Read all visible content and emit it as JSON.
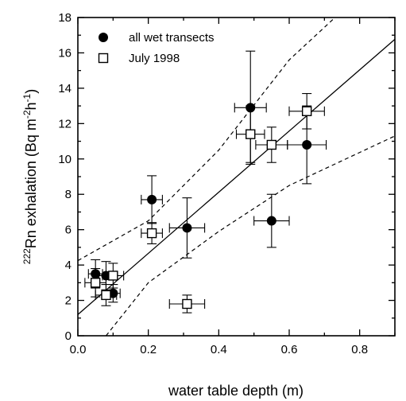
{
  "chart_data": {
    "type": "scatter",
    "xlabel": "water table depth (m)",
    "ylabel": {
      "pre_superscript": "222",
      "main": "Rn exhalation (Bq m",
      "sup1": "-2",
      "mid": "h",
      "sup2": "-1",
      "end": ")"
    },
    "xlim": [
      0.0,
      0.9
    ],
    "ylim": [
      0,
      18
    ],
    "x_ticks": [
      0.0,
      0.2,
      0.4,
      0.6,
      0.8
    ],
    "x_tick_labels": [
      "0.0",
      "0.2",
      "0.4",
      "0.6",
      "0.8"
    ],
    "y_ticks": [
      0,
      2,
      4,
      6,
      8,
      10,
      12,
      14,
      16,
      18
    ],
    "y_tick_labels": [
      "0",
      "2",
      "4",
      "6",
      "8",
      "10",
      "12",
      "14",
      "16",
      "18"
    ],
    "legend_position": "top-left",
    "series": [
      {
        "name": "all wet transects",
        "marker": "filled-circle",
        "points": [
          {
            "x": 0.05,
            "y": 3.5,
            "xerr": 0.02,
            "yerr": 0.8
          },
          {
            "x": 0.08,
            "y": 3.4,
            "xerr": 0.02,
            "yerr": 0.8
          },
          {
            "x": 0.1,
            "y": 2.4,
            "xerr": 0.02,
            "yerr": 0.5
          },
          {
            "x": 0.21,
            "y": 7.7,
            "xerr": 0.03,
            "yerr": 1.35
          },
          {
            "x": 0.31,
            "y": 6.1,
            "xerr": 0.05,
            "yerr": 1.7
          },
          {
            "x": 0.49,
            "y": 12.9,
            "xerr": 0.045,
            "yerr": 3.2
          },
          {
            "x": 0.55,
            "y": 6.5,
            "xerr": 0.05,
            "yerr": 1.5
          },
          {
            "x": 0.65,
            "y": 10.8,
            "xerr": 0.055,
            "yerr": 2.2
          }
        ]
      },
      {
        "name": "July 1998",
        "marker": "open-square",
        "points": [
          {
            "x": 0.05,
            "y": 3.0,
            "xerr": 0.03,
            "yerr": 0.8
          },
          {
            "x": 0.08,
            "y": 2.3,
            "xerr": 0.03,
            "yerr": 0.6
          },
          {
            "x": 0.1,
            "y": 3.4,
            "xerr": 0.03,
            "yerr": 0.7
          },
          {
            "x": 0.21,
            "y": 5.8,
            "xerr": 0.03,
            "yerr": 0.6
          },
          {
            "x": 0.31,
            "y": 1.8,
            "xerr": 0.05,
            "yerr": 0.5
          },
          {
            "x": 0.49,
            "y": 11.4,
            "xerr": 0.04,
            "yerr": 1.6
          },
          {
            "x": 0.55,
            "y": 10.8,
            "xerr": 0.045,
            "yerr": 1.0
          },
          {
            "x": 0.65,
            "y": 12.7,
            "xerr": 0.05,
            "yerr": 1.0
          }
        ]
      }
    ],
    "regression_line": {
      "style": "solid",
      "intercept": 1.2,
      "slope": 17.3
    },
    "confidence_band": {
      "style": "dashed",
      "upper": [
        [
          0.0,
          4.25
        ],
        [
          0.2,
          6.5
        ],
        [
          0.4,
          10.5
        ],
        [
          0.6,
          15.6
        ],
        [
          0.73,
          18.0
        ]
      ],
      "lower": [
        [
          0.08,
          0.0
        ],
        [
          0.2,
          3.0
        ],
        [
          0.4,
          5.9
        ],
        [
          0.6,
          8.5
        ],
        [
          0.9,
          11.3
        ]
      ]
    }
  }
}
